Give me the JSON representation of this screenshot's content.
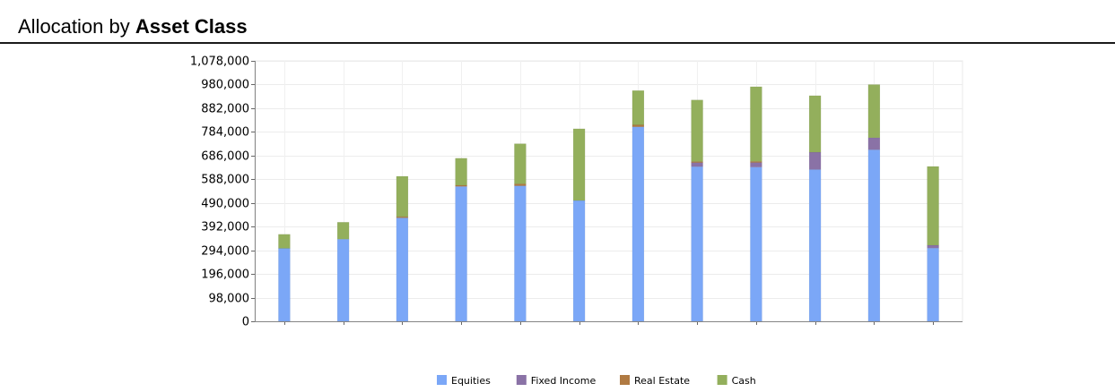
{
  "header": {
    "title_prefix": "Allocation by",
    "title_bold": "Asset Class"
  },
  "chart_data": {
    "type": "bar",
    "stacked": true,
    "title": "Allocation by Asset Class",
    "xlabel": "",
    "ylabel": "",
    "ylim": [
      0,
      1078000
    ],
    "yticks": [
      0,
      98000,
      196000,
      294000,
      392000,
      490000,
      588000,
      686000,
      784000,
      882000,
      980000,
      1078000
    ],
    "ytick_labels": [
      "0",
      "98,000",
      "196,000",
      "294,000",
      "392,000",
      "490,000",
      "588,000",
      "686,000",
      "784,000",
      "882,000",
      "980,000",
      "1,078,000"
    ],
    "grid": true,
    "legend": "bottom",
    "categories": [
      "",
      "",
      "",
      "",
      "",
      "",
      "",
      "",
      "",
      "",
      "",
      ""
    ],
    "series": [
      {
        "name": "Equities",
        "color": "#7ba7f7",
        "values": [
          302000,
          340000,
          428000,
          558000,
          561000,
          500000,
          805000,
          640000,
          638000,
          628000,
          710000,
          303000
        ]
      },
      {
        "name": "Fixed Income",
        "color": "#8a72a6",
        "values": [
          0,
          0,
          0,
          0,
          0,
          0,
          0,
          17000,
          19000,
          72000,
          50000,
          12000
        ]
      },
      {
        "name": "Real Estate",
        "color": "#b07a42",
        "values": [
          0,
          0,
          5000,
          5000,
          8000,
          0,
          8000,
          4000,
          5000,
          0,
          0,
          0
        ]
      },
      {
        "name": "Cash",
        "color": "#93af5c",
        "values": [
          58000,
          70000,
          167000,
          112000,
          166000,
          297000,
          142000,
          255000,
          309000,
          234000,
          220000,
          326000
        ]
      }
    ]
  }
}
